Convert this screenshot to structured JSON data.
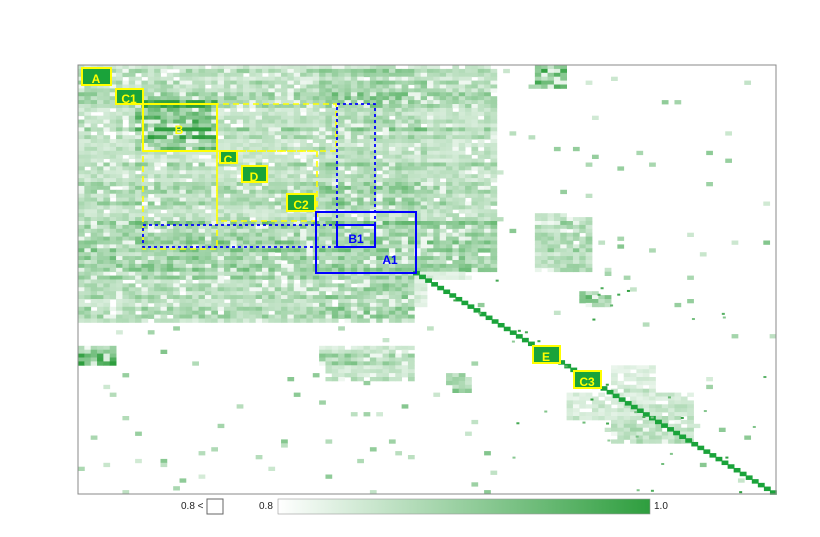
{
  "chart_data": {
    "type": "heatmap",
    "title": "",
    "xlabel": "",
    "ylabel": "",
    "color_scale": {
      "min": 0.8,
      "max": 1.0,
      "low_color": "#ffffff",
      "high_color": "#2e9e3e"
    },
    "legend": {
      "below_label": "0.8 <",
      "min_label": "0.8",
      "max_label": "1.0"
    },
    "colors": {
      "diagonal": "#1aa33a",
      "yellow_annotation": "#ffff00",
      "blue_annotation": "#0000ff",
      "frame": "#888888"
    },
    "annotations": [
      {
        "label": "A",
        "color": "yellow"
      },
      {
        "label": "C1",
        "color": "yellow"
      },
      {
        "label": "B",
        "color": "yellow"
      },
      {
        "label": "C",
        "color": "yellow"
      },
      {
        "label": "D",
        "color": "yellow"
      },
      {
        "label": "C2",
        "color": "yellow"
      },
      {
        "label": "B1",
        "color": "blue"
      },
      {
        "label": "A1",
        "color": "blue"
      },
      {
        "label": "E",
        "color": "yellow"
      },
      {
        "label": "C3",
        "color": "yellow"
      }
    ]
  }
}
